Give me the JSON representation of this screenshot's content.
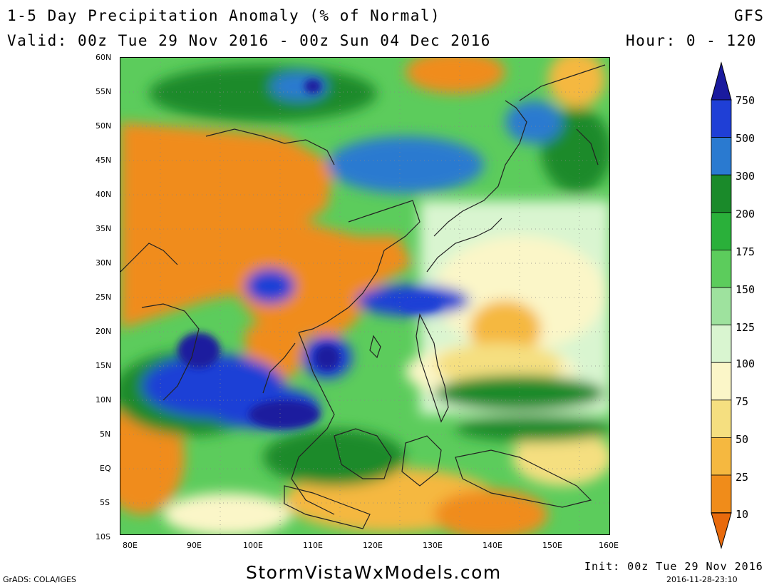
{
  "header": {
    "title": "1-5 Day Precipitation Anomaly (% of Normal)",
    "model": "GFS",
    "valid": "Valid: 00z Tue 29 Nov 2016 - 00z Sun 04 Dec 2016",
    "hour": "Hour: 0 - 120"
  },
  "map": {
    "lat_labels": [
      "60N",
      "55N",
      "50N",
      "45N",
      "40N",
      "35N",
      "30N",
      "25N",
      "20N",
      "15N",
      "10N",
      "5N",
      "EQ",
      "5S",
      "10S"
    ],
    "lon_labels": [
      "80E",
      "90E",
      "100E",
      "110E",
      "120E",
      "130E",
      "140E",
      "150E",
      "160E"
    ]
  },
  "colorbar": {
    "levels": [
      "750",
      "500",
      "300",
      "200",
      "175",
      "150",
      "125",
      "100",
      "75",
      "50",
      "25",
      "10"
    ],
    "colors": [
      "#1a1a9e",
      "#1f3fd6",
      "#2a7ad0",
      "#1a8a2a",
      "#2ab03a",
      "#5ccc5c",
      "#9ee29e",
      "#d9f5d0",
      "#fbf6c8",
      "#f5df80",
      "#f5b840",
      "#f08c1a",
      "#e86a0c"
    ]
  },
  "footer": {
    "grads": "GrADS: COLA/IGES",
    "brand": "StormVistaWxModels.com",
    "init": "Init: 00z Tue 29 Nov 2016",
    "timestamp": "2016-11-28-23:10"
  }
}
